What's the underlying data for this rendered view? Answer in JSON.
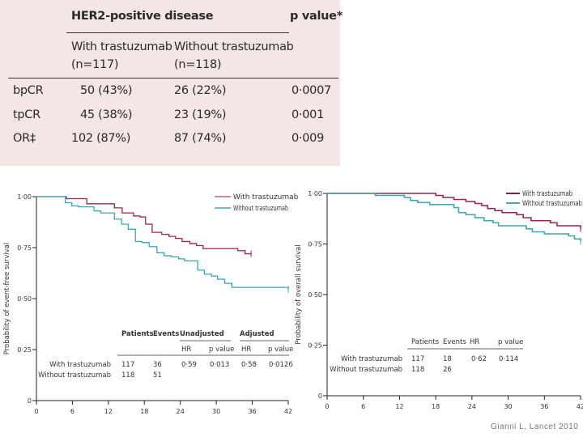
{
  "results_table": {
    "group_header": "HER2-positive disease",
    "pvalue_header": "p value*",
    "columns": [
      {
        "name": "With trastuzumab",
        "n": "(n=117)"
      },
      {
        "name": "Without trastuzumab",
        "n": "(n=118)"
      }
    ],
    "rows": [
      {
        "label": "bpCR",
        "with": "50 (43%)",
        "without": "26 (22%)",
        "p": "0·0007"
      },
      {
        "label": "tpCR",
        "with": "45 (38%)",
        "without": "23 (19%)",
        "p": "0·001"
      },
      {
        "label": "OR‡",
        "with": "102 (87%)",
        "without": "87 (74%)",
        "p": "0·009"
      }
    ]
  },
  "citation": "Gianni L, Lancet 2010",
  "colors": {
    "with": "#a0234a",
    "without": "#3aa6b4",
    "table_bg": "#f5e6e6"
  },
  "chart_data": [
    {
      "type": "line",
      "subtype": "kaplan-meier",
      "title": "",
      "xlabel": "",
      "ylabel": "Probability of event-free survival",
      "xlim": [
        0,
        42
      ],
      "ylim": [
        0,
        1
      ],
      "xticks": [
        "0",
        "6",
        "12",
        "18",
        "24",
        "30",
        "36",
        "42"
      ],
      "yticks": [
        "0",
        "0·25",
        "0·50",
        "0·75",
        "1·00"
      ],
      "legend_position": "top-right",
      "series": [
        {
          "name": "With trastuzumab",
          "color": "#a0234a",
          "steps": [
            [
              0,
              1.0
            ],
            [
              5,
              0.99
            ],
            [
              8.4,
              0.965
            ],
            [
              13,
              0.945
            ],
            [
              14.3,
              0.92
            ],
            [
              16.2,
              0.905
            ],
            [
              17.3,
              0.9
            ],
            [
              18.2,
              0.865
            ],
            [
              19.3,
              0.825
            ],
            [
              20.9,
              0.815
            ],
            [
              22.1,
              0.805
            ],
            [
              23.2,
              0.795
            ],
            [
              24.3,
              0.78
            ],
            [
              25.6,
              0.77
            ],
            [
              26.7,
              0.76
            ],
            [
              27.8,
              0.745
            ],
            [
              33.6,
              0.735
            ],
            [
              34.8,
              0.72
            ],
            [
              35.8,
              0.72
            ]
          ]
        },
        {
          "name": "Without trastuzumab",
          "color": "#3aa6b4",
          "steps": [
            [
              0,
              1.0
            ],
            [
              4.8,
              0.97
            ],
            [
              5.9,
              0.955
            ],
            [
              7,
              0.95
            ],
            [
              9.6,
              0.93
            ],
            [
              10.7,
              0.92
            ],
            [
              13,
              0.89
            ],
            [
              14.2,
              0.865
            ],
            [
              15.3,
              0.84
            ],
            [
              16.5,
              0.78
            ],
            [
              17.6,
              0.775
            ],
            [
              18.8,
              0.755
            ],
            [
              20.1,
              0.725
            ],
            [
              21.3,
              0.71
            ],
            [
              22.5,
              0.705
            ],
            [
              23.7,
              0.695
            ],
            [
              24.7,
              0.685
            ],
            [
              26.9,
              0.64
            ],
            [
              28,
              0.62
            ],
            [
              29.2,
              0.61
            ],
            [
              30.2,
              0.595
            ],
            [
              31.4,
              0.575
            ],
            [
              32.6,
              0.555
            ],
            [
              42,
              0.545
            ]
          ]
        }
      ],
      "stats_table": {
        "headers": [
          "Patients",
          "Events",
          "Unadjusted",
          "Adjusted"
        ],
        "subheaders": [
          "HR",
          "p value",
          "HR",
          "p value"
        ],
        "rows": [
          {
            "label": "With trastuzumab",
            "patients": "117",
            "events": "36",
            "hr_unadj": "0·59",
            "p_unadj": "0·013",
            "hr_adj": "0·58",
            "p_adj": "0·0126"
          },
          {
            "label": "Without trastuzumab",
            "patients": "118",
            "events": "51",
            "hr_unadj": "",
            "p_unadj": "",
            "hr_adj": "",
            "p_adj": ""
          }
        ]
      }
    },
    {
      "type": "line",
      "subtype": "kaplan-meier",
      "title": "",
      "xlabel": "",
      "ylabel": "Probability of overall survival",
      "xlim": [
        0,
        42
      ],
      "ylim": [
        0,
        1
      ],
      "xticks": [
        "0",
        "6",
        "12",
        "18",
        "24",
        "30",
        "36",
        "42"
      ],
      "yticks": [
        "0",
        "0·25",
        "0·50",
        "0·75",
        "1·00"
      ],
      "legend_position": "top-right",
      "series": [
        {
          "name": "With trastuzumab",
          "color": "#a0234a",
          "steps": [
            [
              0,
              1.0
            ],
            [
              18,
              0.99
            ],
            [
              19.2,
              0.98
            ],
            [
              21,
              0.97
            ],
            [
              23,
              0.96
            ],
            [
              24.5,
              0.95
            ],
            [
              25.6,
              0.94
            ],
            [
              26.6,
              0.925
            ],
            [
              27.8,
              0.915
            ],
            [
              29,
              0.905
            ],
            [
              31.4,
              0.895
            ],
            [
              32.5,
              0.88
            ],
            [
              33.8,
              0.865
            ],
            [
              37,
              0.855
            ],
            [
              38.1,
              0.84
            ],
            [
              42,
              0.825
            ]
          ]
        },
        {
          "name": "Without trastuzumab",
          "color": "#3aa6b4",
          "steps": [
            [
              0,
              1.0
            ],
            [
              8,
              0.99
            ],
            [
              12.8,
              0.98
            ],
            [
              13.8,
              0.965
            ],
            [
              15,
              0.955
            ],
            [
              17,
              0.945
            ],
            [
              21,
              0.93
            ],
            [
              21.8,
              0.905
            ],
            [
              23,
              0.895
            ],
            [
              24.5,
              0.88
            ],
            [
              26,
              0.865
            ],
            [
              27.5,
              0.855
            ],
            [
              28.4,
              0.84
            ],
            [
              33,
              0.825
            ],
            [
              34,
              0.81
            ],
            [
              36,
              0.8
            ],
            [
              40,
              0.79
            ],
            [
              41,
              0.775
            ],
            [
              42,
              0.765
            ]
          ]
        }
      ],
      "stats_table": {
        "headers": [
          "Patients",
          "Events",
          "HR",
          "p value"
        ],
        "rows": [
          {
            "label": "With trastuzumab",
            "patients": "117",
            "events": "18",
            "hr": "0·62",
            "p": "0·114"
          },
          {
            "label": "Without trastuzumab",
            "patients": "118",
            "events": "26",
            "hr": "",
            "p": ""
          }
        ]
      }
    }
  ]
}
